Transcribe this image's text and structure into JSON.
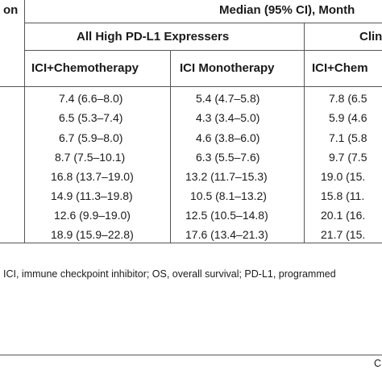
{
  "header": {
    "left_fragment": "on",
    "median_title": "Median (95% CI), Month",
    "group_all": "All High PD-L1 Expressers",
    "group_clin": "Clin",
    "col_ici_chemo": "ICI+Chemotherapy",
    "col_ici_mono": "ICI Monotherapy",
    "col_ici_chemo_clin": "ICI+Chem"
  },
  "rows": [
    {
      "chemo": "7.4 (6.6–8.0)",
      "mono": "5.4 (4.7–5.8)",
      "clin": "7.8 (6.5"
    },
    {
      "chemo": "6.5 (5.3–7.4)",
      "mono": "4.3 (3.4–5.0)",
      "clin": "5.9 (4.6"
    },
    {
      "chemo": "6.7 (5.9–8.0)",
      "mono": "4.6 (3.8–6.0)",
      "clin": "7.1 (5.8"
    },
    {
      "chemo": "8.7 (7.5–10.1)",
      "mono": "6.3 (5.5–7.6)",
      "clin": "9.7 (7.5"
    },
    {
      "chemo": "16.8 (13.7–19.0)",
      "mono": "13.2 (11.7–15.3)",
      "clin": "19.0 (15."
    },
    {
      "chemo": "14.9 (11.3–19.8)",
      "mono": "10.5 (8.1–13.2)",
      "clin": "15.8 (11."
    },
    {
      "chemo": "12.6 (9.9–19.0)",
      "mono": "12.5 (10.5–14.8)",
      "clin": "20.1 (16."
    },
    {
      "chemo": "18.9 (15.9–22.8)",
      "mono": "17.6 (13.4–21.3)",
      "clin": "21.7 (15."
    }
  ],
  "footnote": "ICI, immune checkpoint inhibitor; OS, overall survival; PD-L1, programmed",
  "corner_fragment": "C"
}
